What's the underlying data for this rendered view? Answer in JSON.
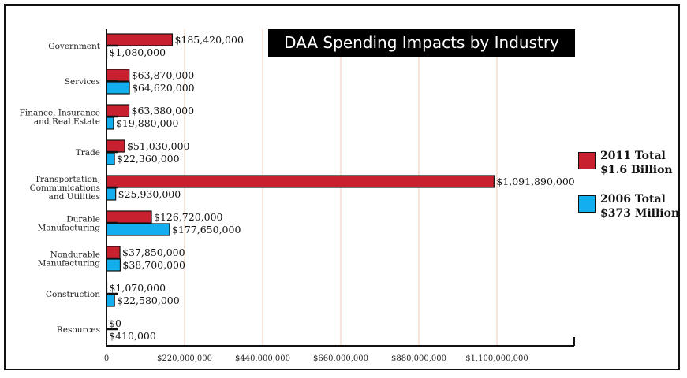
{
  "chart_data": {
    "type": "bar",
    "orientation": "horizontal",
    "title": "DAA Spending Impacts by Industry",
    "categories": [
      "Government",
      "Services",
      "Finance, Insurance and Real Estate",
      "Trade",
      "Transportation, Communications and Utilities",
      "Durable Manufacturing",
      "Nondurable Manufacturing",
      "Construction",
      "Resources"
    ],
    "category_lines": [
      [
        "Government"
      ],
      [
        "Services"
      ],
      [
        "Finance, Insurance",
        "and Real Estate"
      ],
      [
        "Trade"
      ],
      [
        "Transportation,",
        "Communications",
        "and Utilities"
      ],
      [
        "Durable",
        "Manufacturing"
      ],
      [
        "Nondurable",
        "Manufacturing"
      ],
      [
        "Construction"
      ],
      [
        "Resources"
      ]
    ],
    "series": [
      {
        "name": "2011 Total",
        "color": "#c8202f",
        "values": [
          185420000,
          63870000,
          63380000,
          51030000,
          1091890000,
          126720000,
          37850000,
          1070000,
          0
        ],
        "labels": [
          "$185,420,000",
          "$63,870,000",
          "$63,380,000",
          "$51,030,000",
          "$1,091,890,000",
          "$126,720,000",
          "$37,850,000",
          "$1,070,000",
          "$0"
        ]
      },
      {
        "name": "2006 Total",
        "color": "#12aeee",
        "values": [
          1080000,
          64620000,
          19880000,
          22360000,
          25930000,
          177650000,
          38700000,
          22580000,
          410000
        ],
        "labels": [
          "$1,080,000",
          "$64,620,000",
          "$19,880,000",
          "$22,360,000",
          "$25,930,000",
          "$177,650,000",
          "$38,700,000",
          "$22,580,000",
          "$410,000"
        ]
      }
    ],
    "xlim": [
      0,
      1100000000
    ],
    "x_ticks": [
      0,
      220000000,
      440000000,
      660000000,
      880000000,
      1100000000
    ],
    "x_tick_labels": [
      "0",
      "$220,000,000",
      "$440,000,000",
      "$660,000,000",
      "$880,000,000",
      "$1,100,000,000"
    ],
    "grid": "vertical",
    "legend_position": "right"
  },
  "legend": [
    {
      "line1": "2011 Total",
      "line2": "$1.6 Billion",
      "color": "#c8202f"
    },
    {
      "line1": "2006 Total",
      "line2": "$373 Million",
      "color": "#12aeee"
    }
  ]
}
